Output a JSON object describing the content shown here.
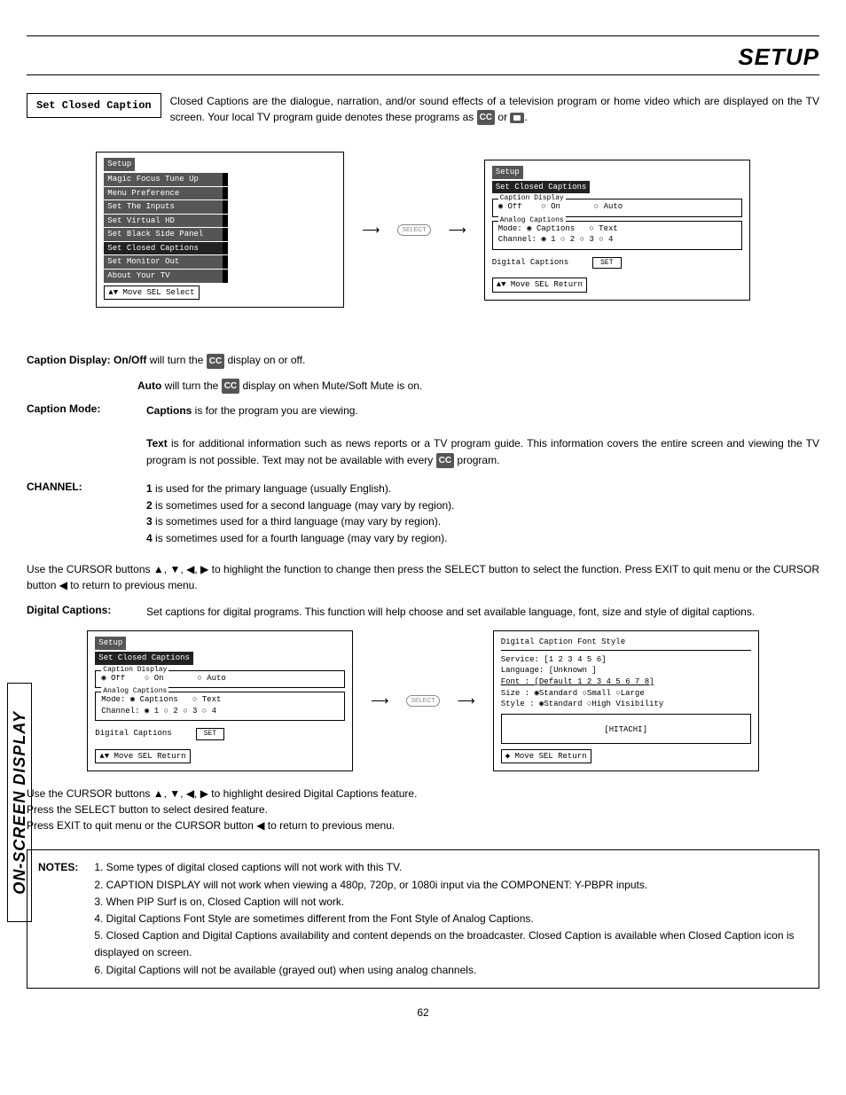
{
  "header": {
    "title": "SETUP"
  },
  "sideTab": "ON-SCREEN DISPLAY",
  "intro": {
    "boxLabel": "Set Closed Caption",
    "text1": "Closed Captions are the dialogue, narration, and/or sound effects of a television program or home video which are displayed on the TV screen.  Your local TV program guide denotes these programs as ",
    "text2": " or ",
    "text3": "."
  },
  "setupMenu": {
    "header": "Setup",
    "items": [
      "Magic Focus Tune Up",
      "Menu Preference",
      "Set The Inputs",
      "Set Virtual HD",
      "Set Black Side Panel",
      "Set Closed Captions",
      "Set Monitor Out",
      "About Your TV"
    ],
    "highlightIndex": 5,
    "footer": "▲▼ Move  SEL Select"
  },
  "ccMenu": {
    "header1": "Setup",
    "header2": "Set Closed Captions",
    "captionDisplay": {
      "legend": "Caption Display",
      "off": "Off",
      "on": "On",
      "auto": "Auto"
    },
    "analog": {
      "legend": "Analog Captions",
      "modeLabel": "Mode:",
      "captions": "Captions",
      "text": "Text",
      "channelLabel": "Channel:",
      "ch": [
        "1",
        "2",
        "3",
        "4"
      ]
    },
    "digitalLabel": "Digital Captions",
    "setLabel": "SET",
    "footer": "▲▼ Move  SEL Return"
  },
  "captionDisplay": {
    "label": "Caption Display:",
    "onoffLabel": "On/Off",
    "onoffText": " will turn the ",
    "onoffText2": " display on or off.",
    "autoLabel": "Auto",
    "autoText": " will turn the ",
    "autoText2": " display on when Mute/Soft Mute is on."
  },
  "captionMode": {
    "label": "Caption Mode:",
    "captionsLabel": "Captions",
    "captionsText": " is for the program you are viewing.",
    "textLabel": "Text",
    "textText": " is for additional information such as news reports or a TV program guide.  This information covers the entire screen and viewing the TV program is not possible.  Text may not be available with every ",
    "textText2": " program."
  },
  "channel": {
    "label": "CHANNEL:",
    "lines": [
      {
        "n": "1",
        "t": " is used for the primary language (usually English)."
      },
      {
        "n": "2",
        "t": " is sometimes used for a second language (may vary by region)."
      },
      {
        "n": "3",
        "t": " is sometimes used for a third language (may vary by region)."
      },
      {
        "n": "4",
        "t": " is sometimes used for a fourth language (may vary by region)."
      }
    ]
  },
  "cursorPara": "Use the CURSOR buttons ▲, ▼, ◀, ▶ to highlight the function to change then press the SELECT button to select the function. Press EXIT to quit menu or the CURSOR button ◀ to return to previous menu.",
  "digitalCaptions": {
    "label": "Digital Captions:",
    "text": "Set captions for digital programs.  This function will help choose and set  available language, font, size and style of digital captions."
  },
  "fontStyleMenu": {
    "header": "Digital Caption Font Style",
    "service": "Service: [1 2 3 4 5 6]",
    "language": "Language: [Unknown    ]",
    "font": "Font    : [Default 1 2 3 4 5 6 7 8]",
    "size": "Size    : ◉Standard ○Small  ○Large",
    "style": "Style   : ◉Standard ○High Visibility",
    "preview": "[HITACHI]",
    "footer": "◆ Move  SEL Return"
  },
  "cursor2": [
    "Use the CURSOR buttons ▲, ▼, ◀, ▶ to highlight desired Digital Captions feature.",
    "Press the SELECT button to select desired feature.",
    "Press EXIT to quit menu or the CURSOR button ◀ to return to previous menu."
  ],
  "notes": {
    "label": "NOTES:",
    "items": [
      "Some types of digital closed captions will not work with this TV.",
      "CAPTION DISPLAY will not work when viewing a 480p, 720p, or 1080i input via the COMPONENT: Y-PBPR inputs.",
      "When PIP Surf is on, Closed Caption will not work.",
      "Digital Captions Font Style are sometimes different from the Font Style of Analog Captions.",
      "Closed Caption and Digital Captions availability and content depends on the broadcaster.  Closed Caption is available when Closed Caption icon is displayed on screen.",
      "Digital Captions will not be available (grayed out) when using analog channels."
    ]
  },
  "pageNum": "62",
  "selectBtn": "SELECT"
}
